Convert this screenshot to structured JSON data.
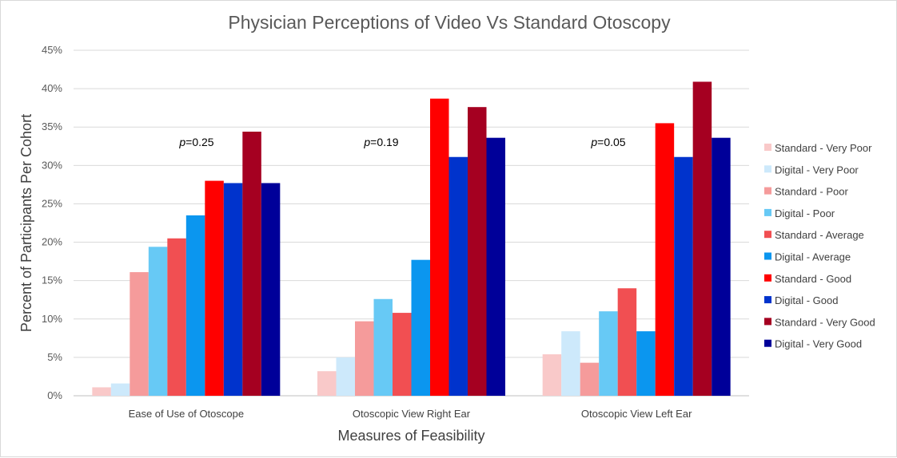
{
  "chart_data": {
    "type": "bar",
    "title": "Physician Perceptions of Video Vs Standard Otoscopy",
    "xlabel": "Measures of Feasibility",
    "ylabel": "Percent of Participants Per Cohort",
    "ylim": [
      0,
      45
    ],
    "ytick_step": 5,
    "ytick_suffix": "%",
    "grid": true,
    "legend_position": "right",
    "categories": [
      "Ease of Use of Otoscope",
      "Otoscopic View Right Ear",
      "Otoscopic View Left Ear"
    ],
    "annotations": [
      {
        "category": "Ease of Use of Otoscope",
        "italic": "p",
        "text": "=0.25"
      },
      {
        "category": "Otoscopic View Right Ear",
        "italic": "p",
        "text": "=0.19"
      },
      {
        "category": "Otoscopic View Left Ear",
        "italic": "p",
        "text": "=0.05"
      }
    ],
    "series": [
      {
        "name": "Standard - Very Poor",
        "color": "#f9c9c9",
        "values": [
          1.1,
          3.2,
          5.4
        ]
      },
      {
        "name": "Digital - Very Poor",
        "color": "#cde9fb",
        "values": [
          1.6,
          5.0,
          8.4
        ]
      },
      {
        "name": "Standard - Poor",
        "color": "#f59b9b",
        "values": [
          16.1,
          9.7,
          4.3
        ]
      },
      {
        "name": "Digital - Poor",
        "color": "#67c9f5",
        "values": [
          19.4,
          12.6,
          11.0
        ]
      },
      {
        "name": "Standard - Average",
        "color": "#f14f52",
        "values": [
          20.5,
          10.8,
          14.0
        ]
      },
      {
        "name": "Digital - Average",
        "color": "#0b96ef",
        "values": [
          23.5,
          17.7,
          8.4
        ]
      },
      {
        "name": "Standard - Good",
        "color": "#ff0000",
        "values": [
          28.0,
          38.7,
          35.5
        ]
      },
      {
        "name": "Digital - Good",
        "color": "#0033cc",
        "values": [
          27.7,
          31.1,
          31.1
        ]
      },
      {
        "name": "Standard - Very Good",
        "color": "#a50021",
        "values": [
          34.4,
          37.6,
          40.9
        ]
      },
      {
        "name": "Digital - Very Good",
        "color": "#000099",
        "values": [
          27.7,
          33.6,
          33.6
        ]
      }
    ]
  }
}
